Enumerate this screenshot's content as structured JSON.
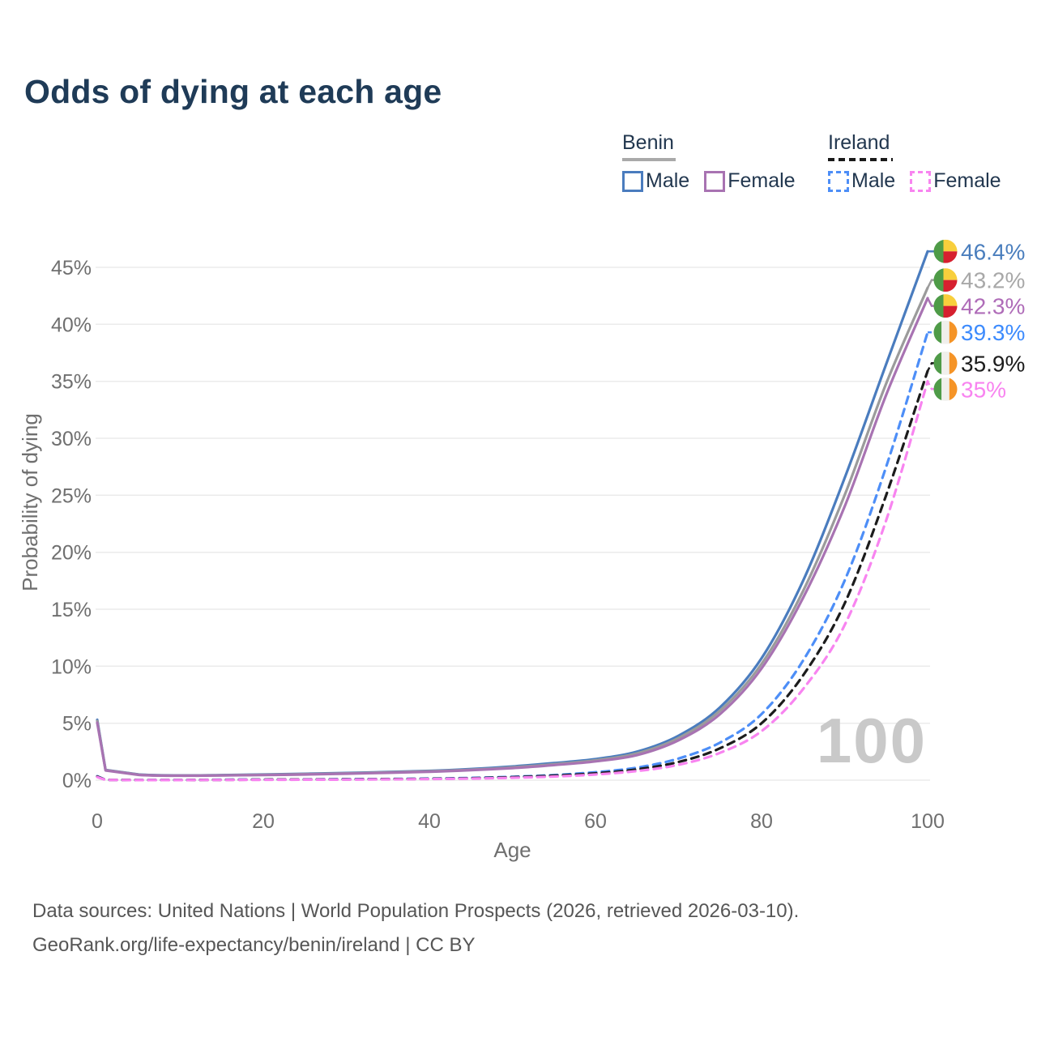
{
  "title": "Odds of dying at each age",
  "watermark": "100",
  "legend": {
    "benin": {
      "country": "Benin",
      "male_label": "Male",
      "female_label": "Female"
    },
    "ireland": {
      "country": "Ireland",
      "male_label": "Male",
      "female_label": "Female"
    }
  },
  "sources": {
    "line1": "Data sources: United Nations | World Population Prospects (2026, retrieved 2026-03-10).",
    "line2": "GeoRank.org/life-expectancy/benin/ireland | CC BY"
  },
  "colors": {
    "title_text": "#1f3b57",
    "legend_text": "#22374f",
    "axis_text": "#6f6f6f",
    "gridline": "#ebebeb",
    "watermark": "#c9c9c9",
    "source_text": "#565656",
    "benin_underline": "#a9a9a9",
    "ireland_underline": "#1a1a1a"
  },
  "flags": {
    "benin": {
      "green": "#4e9b47",
      "yellow": "#f8cf3c",
      "red": "#d6202f"
    },
    "ireland": {
      "green": "#4f9b48",
      "white": "#f0efec",
      "orange": "#f59427"
    }
  },
  "chart_data": {
    "type": "line",
    "title": "Odds of dying at each age",
    "xlabel": "Age",
    "ylabel": "Probability of dying",
    "xlim": [
      0,
      100
    ],
    "ylim": [
      0,
      47
    ],
    "x_ticks": [
      0,
      20,
      40,
      60,
      80,
      100
    ],
    "y_ticks": [
      0,
      5,
      10,
      15,
      20,
      25,
      30,
      35,
      40,
      45
    ],
    "y_tick_suffix": "%",
    "grid": "horizontal-only",
    "legend_position": "top-right",
    "x": [
      0,
      1,
      5,
      10,
      15,
      20,
      25,
      30,
      35,
      40,
      45,
      50,
      55,
      60,
      65,
      70,
      75,
      80,
      85,
      90,
      95,
      100
    ],
    "series": [
      {
        "name": "Benin Male",
        "country": "Benin",
        "sex": "Male",
        "line_style": "solid",
        "color": "#4a7cbe",
        "flag": "benin",
        "end_label": "46.4%",
        "end_label_color": "#4a7ebd",
        "values": [
          5.3,
          0.9,
          0.5,
          0.42,
          0.45,
          0.5,
          0.56,
          0.63,
          0.72,
          0.82,
          0.98,
          1.2,
          1.5,
          1.85,
          2.5,
          3.9,
          6.4,
          10.7,
          17.5,
          26.5,
          36.5,
          46.4
        ]
      },
      {
        "name": "Benin (both sexes)",
        "country": "Benin",
        "sex": "Total",
        "line_style": "solid",
        "color": "#9b9b9b",
        "flag": "benin",
        "end_label": "43.2%",
        "end_label_color": "#a8a8a8",
        "values": [
          5.2,
          0.88,
          0.48,
          0.4,
          0.43,
          0.47,
          0.53,
          0.6,
          0.68,
          0.78,
          0.92,
          1.12,
          1.4,
          1.75,
          2.35,
          3.7,
          6.1,
          10.2,
          16.6,
          25.0,
          34.8,
          43.2
        ]
      },
      {
        "name": "Benin Female",
        "country": "Benin",
        "sex": "Female",
        "line_style": "solid",
        "color": "#a873b2",
        "flag": "benin",
        "end_label": "42.3%",
        "end_label_color": "#af6cb8",
        "values": [
          5.05,
          0.85,
          0.46,
          0.39,
          0.41,
          0.45,
          0.5,
          0.57,
          0.65,
          0.74,
          0.88,
          1.06,
          1.32,
          1.65,
          2.2,
          3.5,
          5.8,
          9.8,
          16.0,
          24.0,
          33.8,
          42.3
        ]
      },
      {
        "name": "Ireland Male",
        "country": "Ireland",
        "sex": "Male",
        "line_style": "dashed",
        "color": "#4d8ef7",
        "flag": "ireland",
        "end_label": "39.3%",
        "end_label_color": "#3d8bfd",
        "values": [
          0.35,
          0.03,
          0.02,
          0.02,
          0.04,
          0.06,
          0.07,
          0.09,
          0.11,
          0.14,
          0.2,
          0.3,
          0.45,
          0.7,
          1.1,
          1.9,
          3.3,
          5.8,
          10.5,
          17.5,
          27.5,
          39.3
        ]
      },
      {
        "name": "Ireland (both sexes)",
        "country": "Ireland",
        "sex": "Total",
        "line_style": "dashed",
        "color": "#1c1c1c",
        "flag": "ireland",
        "end_label": "35.9%",
        "end_label_color": "#1c1c1c",
        "values": [
          0.32,
          0.03,
          0.015,
          0.015,
          0.03,
          0.05,
          0.06,
          0.07,
          0.09,
          0.12,
          0.17,
          0.26,
          0.4,
          0.6,
          0.95,
          1.6,
          2.8,
          5.0,
          9.2,
          15.5,
          25.0,
          35.9
        ]
      },
      {
        "name": "Ireland Female",
        "country": "Ireland",
        "sex": "Female",
        "line_style": "dashed",
        "color": "#f884f0",
        "flag": "ireland",
        "end_label": "35%",
        "end_label_color": "#f884f0",
        "values": [
          0.28,
          0.02,
          0.01,
          0.01,
          0.02,
          0.03,
          0.04,
          0.05,
          0.07,
          0.1,
          0.14,
          0.21,
          0.32,
          0.5,
          0.8,
          1.35,
          2.4,
          4.3,
          8.0,
          13.6,
          22.8,
          35.0
        ]
      }
    ]
  }
}
